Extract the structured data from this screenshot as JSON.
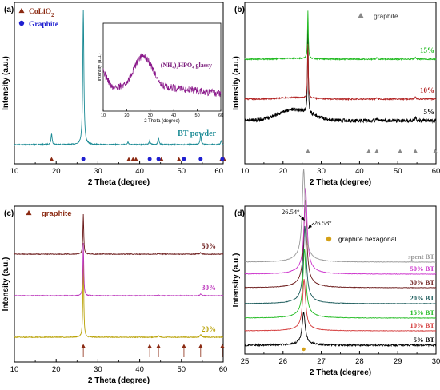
{
  "chart_data": [
    {
      "panel": "(a)",
      "type": "line",
      "xlabel": "2 Theta (degree)",
      "ylabel": "Intensity (a.u.)",
      "xlim": [
        10,
        60
      ],
      "x_ticks": [
        "10",
        "20",
        "30",
        "40",
        "50",
        "60"
      ],
      "legend": [
        {
          "label": "CoLiO",
          "sub": "2",
          "marker": "triangle",
          "color": "#8B2A12"
        },
        {
          "label": "Graphite",
          "marker": "circle",
          "color": "#1f1fd0"
        }
      ],
      "series": [
        {
          "name": "BT powder",
          "color": "#1a8a94"
        }
      ],
      "peaks": [
        {
          "x": 18.9,
          "h": 8
        },
        {
          "x": 26.5,
          "h": 100
        },
        {
          "x": 37.2,
          "h": 2
        },
        {
          "x": 42.4,
          "h": 3
        },
        {
          "x": 44.5,
          "h": 5
        },
        {
          "x": 54.6,
          "h": 7
        },
        {
          "x": 59.5,
          "h": 3
        }
      ],
      "marker_rows": {
        "triangle": [
          18.9,
          37.4,
          38.4,
          39.1,
          45.2,
          49.4,
          59.6,
          60.2
        ],
        "circle": [
          26.5,
          42.4,
          44.5,
          50.6,
          54.6,
          59.8
        ]
      },
      "inset": {
        "title": "(NH₄)₂HPO₄ glassy",
        "xlabel": "2 Theta (degree)",
        "ylabel": "Intensity (a.u.)",
        "xlim": [
          10,
          60
        ],
        "x_ticks": [
          "10",
          "20",
          "30",
          "40",
          "50",
          "60"
        ],
        "hump_center": 27,
        "color": "#8b1a8b"
      }
    },
    {
      "panel": "(b)",
      "type": "line",
      "xlabel": "2 Theta (degree)",
      "ylabel": "Intensity (a.u.)",
      "xlim": [
        10,
        60
      ],
      "x_ticks": [
        "10",
        "20",
        "30",
        "40",
        "50",
        "60"
      ],
      "legend": [
        {
          "label": "graphite",
          "marker": "triangle",
          "color": "#888888"
        }
      ],
      "series": [
        {
          "name": "5%",
          "color": "#000000"
        },
        {
          "name": "10%",
          "color": "#b22222"
        },
        {
          "name": "15%",
          "color": "#22bb22"
        }
      ],
      "marker_row": [
        26.5,
        42.4,
        44.5,
        50.6,
        54.6,
        59.8
      ]
    },
    {
      "panel": "(c)",
      "type": "line",
      "xlabel": "2 Theta (degree)",
      "ylabel": "Intensity (a.u.)",
      "xlim": [
        10,
        60
      ],
      "x_ticks": [
        "10",
        "20",
        "30",
        "40",
        "50",
        "60"
      ],
      "legend": [
        {
          "label": "graphite",
          "marker": "triangle",
          "color": "#8B2A12"
        }
      ],
      "series": [
        {
          "name": "20%",
          "color": "#b8a000"
        },
        {
          "name": "30%",
          "color": "#bb33bb"
        },
        {
          "name": "50%",
          "color": "#6b1a1a"
        }
      ],
      "marker_row": [
        26.5,
        42.4,
        44.5,
        50.6,
        54.6,
        59.8
      ]
    },
    {
      "panel": "(d)",
      "type": "line",
      "xlabel": "2 Theta (degree)",
      "ylabel": "Intensity (a.u.)",
      "xlim": [
        25,
        30
      ],
      "x_ticks": [
        "25",
        "26",
        "27",
        "28",
        "29",
        "30"
      ],
      "legend": [
        {
          "label": "graphite hexagonal",
          "marker": "circle",
          "color": "#d4a017"
        }
      ],
      "annotations": [
        "26.54°",
        "26.58°"
      ],
      "series": [
        {
          "name": "5% BT",
          "center": 26.54,
          "color": "#000000"
        },
        {
          "name": "10% BT",
          "center": 26.55,
          "color": "#d43a3a"
        },
        {
          "name": "15% BT",
          "center": 26.56,
          "color": "#22bb22"
        },
        {
          "name": "20% BT",
          "center": 26.57,
          "color": "#1a5a5a"
        },
        {
          "name": "30% BT",
          "center": 26.58,
          "color": "#6b1a1a"
        },
        {
          "name": "50% BT",
          "center": 26.59,
          "color": "#cc33cc"
        },
        {
          "name": "spent BT",
          "center": 26.54,
          "color": "#999999"
        }
      ]
    }
  ]
}
